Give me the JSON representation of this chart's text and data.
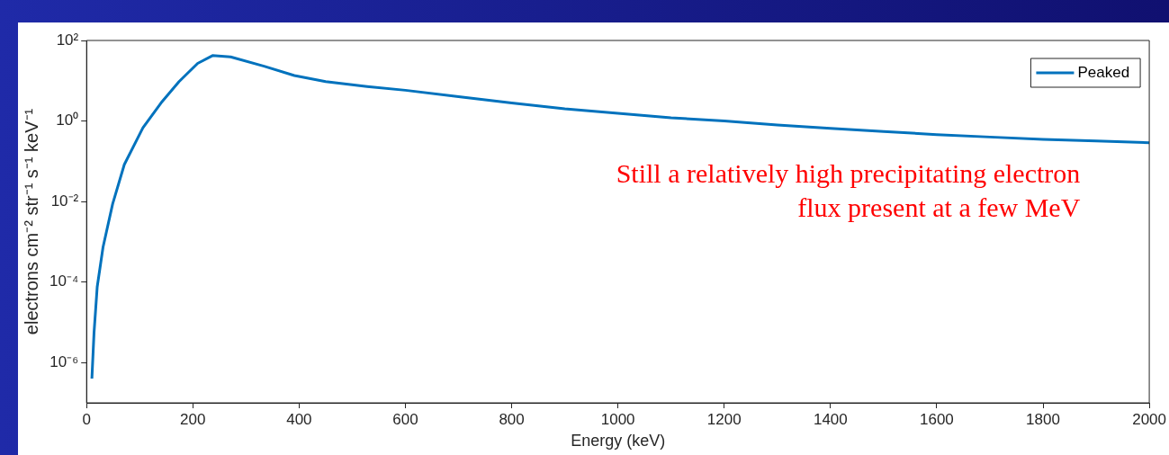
{
  "chart_data": {
    "type": "line",
    "xlabel": "Energy (keV)",
    "ylabel": "electrons cm⁻² str⁻¹ s⁻¹ keV⁻¹",
    "xlim": [
      0,
      2000
    ],
    "xticks": [
      0,
      200,
      400,
      600,
      800,
      1000,
      1200,
      1400,
      1600,
      1800,
      2000
    ],
    "ylim": [
      1e-07,
      100
    ],
    "yticks": [
      {
        "value": 1e-06,
        "label": "10⁻⁶"
      },
      {
        "value": 0.0001,
        "label": "10⁻⁴"
      },
      {
        "value": 0.01,
        "label": "10⁻²"
      },
      {
        "value": 1,
        "label": "10⁰"
      },
      {
        "value": 100,
        "label": "10²"
      }
    ],
    "log": "y",
    "grid": false,
    "legend": "top right",
    "marker": "none",
    "line_style": "solid",
    "annotations": [
      "Still a relatively high precipitating electron\nflux present at a few MeV"
    ],
    "series": [
      {
        "name": "Peaked",
        "color": "#0072bd",
        "x": [
          10,
          14,
          20,
          31,
          49,
          71,
          106,
          140,
          174,
          209,
          237,
          271,
          334,
          391,
          450,
          528,
          600,
          700,
          800,
          900,
          1000,
          1100,
          1200,
          1300,
          1400,
          1500,
          1600,
          1700,
          1800,
          1900,
          2000
        ],
        "values": [
          4e-07,
          5.5e-06,
          7.6e-05,
          0.00074,
          0.0087,
          0.083,
          0.68,
          2.8,
          9.5,
          27,
          42,
          39,
          23,
          13.5,
          9.5,
          7.2,
          5.8,
          4,
          2.8,
          2,
          1.55,
          1.2,
          1,
          0.8,
          0.66,
          0.55,
          0.46,
          0.4,
          0.35,
          0.32,
          0.29
        ]
      }
    ]
  }
}
